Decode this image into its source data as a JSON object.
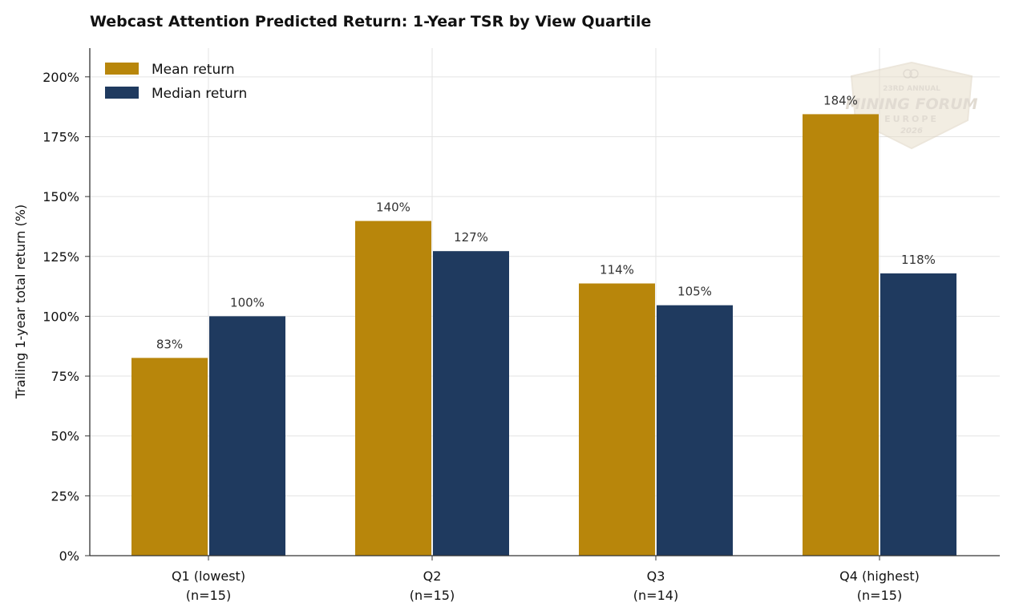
{
  "chart_data": {
    "type": "bar",
    "title": "Webcast Attention Predicted Return: 1-Year TSR by View Quartile",
    "xlabel": "",
    "ylabel": "Trailing 1-year total return (%)",
    "ylim": [
      0,
      212
    ],
    "yticks": [
      0,
      25,
      50,
      75,
      100,
      125,
      150,
      175,
      200
    ],
    "ytick_labels": [
      "0%",
      "25%",
      "50%",
      "75%",
      "100%",
      "125%",
      "150%",
      "175%",
      "200%"
    ],
    "categories": [
      "Q1 (lowest)",
      "Q2",
      "Q3",
      "Q4 (highest)"
    ],
    "category_sublabels": [
      "(n=15)",
      "(n=15)",
      "(n=14)",
      "(n=15)"
    ],
    "series": [
      {
        "name": "Mean return",
        "color": "#b8860b",
        "values": [
          82.6,
          139.8,
          113.7,
          184.4
        ],
        "labels": [
          "83%",
          "140%",
          "114%",
          "184%"
        ]
      },
      {
        "name": "Median return",
        "color": "#1f3a5f",
        "values": [
          100.0,
          127.2,
          104.6,
          117.9
        ],
        "labels": [
          "100%",
          "127%",
          "105%",
          "118%"
        ]
      }
    ],
    "grid": true,
    "legend_position": "top-left"
  },
  "watermark": {
    "line1": "23RD ANNUAL",
    "line2": "MINING FORUM",
    "line3": "EUROPE",
    "line4": "2026"
  }
}
